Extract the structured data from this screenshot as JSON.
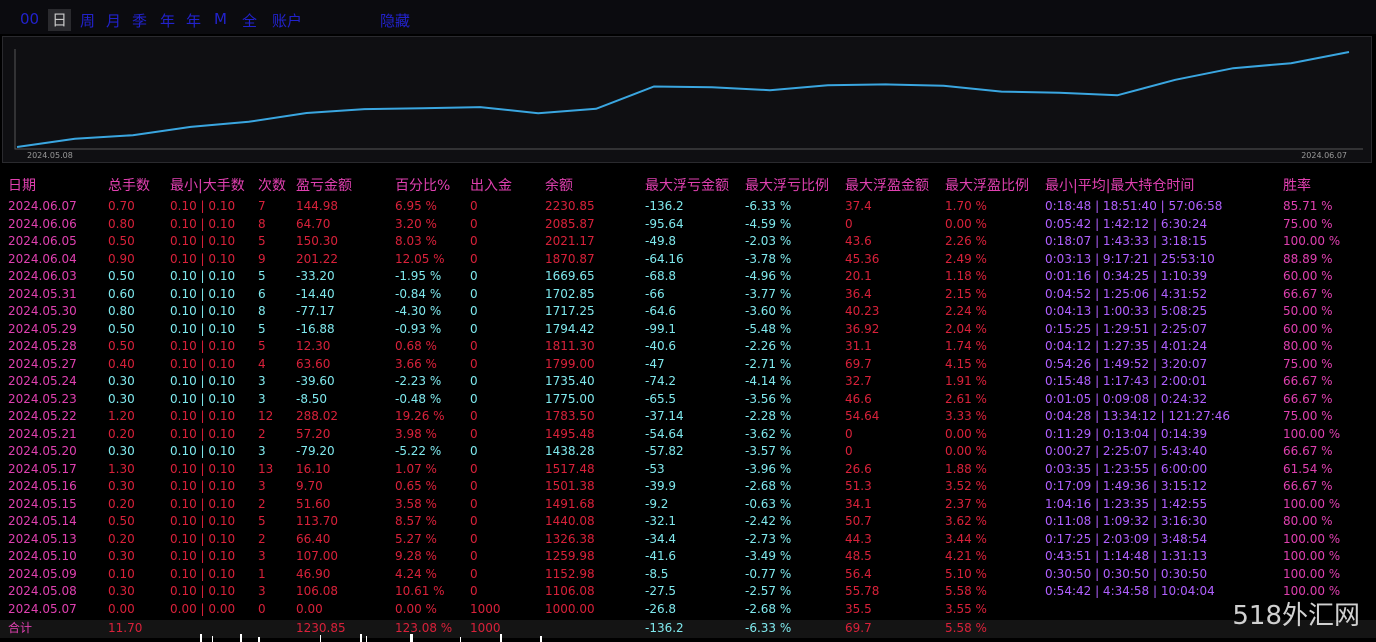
{
  "toolbar": {
    "tabs": [
      "00",
      "日",
      "周",
      "月",
      "季",
      "年",
      "年",
      "M",
      "全",
      "账户"
    ],
    "active_index": 1,
    "extra": "隐藏"
  },
  "chart_data": {
    "type": "line",
    "x_start_label": "2024.05.08",
    "x_end_label": "2024.06.07",
    "color": "#3aa6e0",
    "values": [
      1000.0,
      1106.08,
      1152.98,
      1259.98,
      1326.38,
      1440.08,
      1491.68,
      1501.38,
      1517.48,
      1438.28,
      1495.48,
      1783.5,
      1775.0,
      1735.4,
      1799.0,
      1811.3,
      1794.42,
      1717.25,
      1702.85,
      1669.65,
      1870.87,
      2021.17,
      2085.87,
      2230.85
    ]
  },
  "table": {
    "headers": [
      "日期",
      "总手数",
      "最小|大手数",
      "次数",
      "盈亏金额",
      "百分比%",
      "出入金",
      "余额",
      "最大浮亏金额",
      "最大浮亏比例",
      "最大浮盈金额",
      "最大浮盈比例",
      "最小|平均|最大持仓时间",
      "胜率"
    ],
    "rows": [
      {
        "c": "r",
        "v": [
          "2024.06.07",
          "0.70",
          "0.10 | 0.10",
          "7",
          "144.98",
          "6.95 %",
          "0",
          "2230.85",
          "-136.2",
          "-6.33 %",
          "37.4",
          "1.70 %",
          "0:18:48 | 18:51:40 | 57:06:58",
          "85.71 %"
        ]
      },
      {
        "c": "r",
        "v": [
          "2024.06.06",
          "0.80",
          "0.10 | 0.10",
          "8",
          "64.70",
          "3.20 %",
          "0",
          "2085.87",
          "-95.64",
          "-4.59 %",
          "0",
          "0.00 %",
          "0:05:42 | 1:42:12 | 6:30:24",
          "75.00 %"
        ]
      },
      {
        "c": "r",
        "v": [
          "2024.06.05",
          "0.50",
          "0.10 | 0.10",
          "5",
          "150.30",
          "8.03 %",
          "0",
          "2021.17",
          "-49.8",
          "-2.03 %",
          "43.6",
          "2.26 %",
          "0:18:07 | 1:43:33 | 3:18:15",
          "100.00 %"
        ]
      },
      {
        "c": "r",
        "v": [
          "2024.06.04",
          "0.90",
          "0.10 | 0.10",
          "9",
          "201.22",
          "12.05 %",
          "0",
          "1870.87",
          "-64.16",
          "-3.78 %",
          "45.36",
          "2.49 %",
          "0:03:13 | 9:17:21 | 25:53:10",
          "88.89 %"
        ]
      },
      {
        "c": "g",
        "v": [
          "2024.06.03",
          "0.50",
          "0.10 | 0.10",
          "5",
          "-33.20",
          "-1.95 %",
          "0",
          "1669.65",
          "-68.8",
          "-4.96 %",
          "20.1",
          "1.18 %",
          "0:01:16 | 0:34:25 | 1:10:39",
          "60.00 %"
        ]
      },
      {
        "c": "g",
        "v": [
          "2024.05.31",
          "0.60",
          "0.10 | 0.10",
          "6",
          "-14.40",
          "-0.84 %",
          "0",
          "1702.85",
          "-66",
          "-3.77 %",
          "36.4",
          "2.15 %",
          "0:04:52 | 1:25:06 | 4:31:52",
          "66.67 %"
        ]
      },
      {
        "c": "g",
        "v": [
          "2024.05.30",
          "0.80",
          "0.10 | 0.10",
          "8",
          "-77.17",
          "-4.30 %",
          "0",
          "1717.25",
          "-64.6",
          "-3.60 %",
          "40.23",
          "2.24 %",
          "0:04:13 | 1:00:33 | 5:08:25",
          "50.00 %"
        ]
      },
      {
        "c": "g",
        "v": [
          "2024.05.29",
          "0.50",
          "0.10 | 0.10",
          "5",
          "-16.88",
          "-0.93 %",
          "0",
          "1794.42",
          "-99.1",
          "-5.48 %",
          "36.92",
          "2.04 %",
          "0:15:25 | 1:29:51 | 2:25:07",
          "60.00 %"
        ]
      },
      {
        "c": "r",
        "v": [
          "2024.05.28",
          "0.50",
          "0.10 | 0.10",
          "5",
          "12.30",
          "0.68 %",
          "0",
          "1811.30",
          "-40.6",
          "-2.26 %",
          "31.1",
          "1.74 %",
          "0:04:12 | 1:27:35 | 4:01:24",
          "80.00 %"
        ]
      },
      {
        "c": "r",
        "v": [
          "2024.05.27",
          "0.40",
          "0.10 | 0.10",
          "4",
          "63.60",
          "3.66 %",
          "0",
          "1799.00",
          "-47",
          "-2.71 %",
          "69.7",
          "4.15 %",
          "0:54:26 | 1:49:52 | 3:20:07",
          "75.00 %"
        ]
      },
      {
        "c": "g",
        "v": [
          "2024.05.24",
          "0.30",
          "0.10 | 0.10",
          "3",
          "-39.60",
          "-2.23 %",
          "0",
          "1735.40",
          "-74.2",
          "-4.14 %",
          "32.7",
          "1.91 %",
          "0:15:48 | 1:17:43 | 2:00:01",
          "66.67 %"
        ]
      },
      {
        "c": "g",
        "v": [
          "2024.05.23",
          "0.30",
          "0.10 | 0.10",
          "3",
          "-8.50",
          "-0.48 %",
          "0",
          "1775.00",
          "-65.5",
          "-3.56 %",
          "46.6",
          "2.61 %",
          "0:01:05 | 0:09:08 | 0:24:32",
          "66.67 %"
        ]
      },
      {
        "c": "r",
        "v": [
          "2024.05.22",
          "1.20",
          "0.10 | 0.10",
          "12",
          "288.02",
          "19.26 %",
          "0",
          "1783.50",
          "-37.14",
          "-2.28 %",
          "54.64",
          "3.33 %",
          "0:04:28 | 13:34:12 | 121:27:46",
          "75.00 %"
        ]
      },
      {
        "c": "r",
        "v": [
          "2024.05.21",
          "0.20",
          "0.10 | 0.10",
          "2",
          "57.20",
          "3.98 %",
          "0",
          "1495.48",
          "-54.64",
          "-3.62 %",
          "0",
          "0.00 %",
          "0:11:29 | 0:13:04 | 0:14:39",
          "100.00 %"
        ]
      },
      {
        "c": "g",
        "v": [
          "2024.05.20",
          "0.30",
          "0.10 | 0.10",
          "3",
          "-79.20",
          "-5.22 %",
          "0",
          "1438.28",
          "-57.82",
          "-3.57 %",
          "0",
          "0.00 %",
          "0:00:27 | 2:25:07 | 5:43:40",
          "66.67 %"
        ]
      },
      {
        "c": "r",
        "v": [
          "2024.05.17",
          "1.30",
          "0.10 | 0.10",
          "13",
          "16.10",
          "1.07 %",
          "0",
          "1517.48",
          "-53",
          "-3.96 %",
          "26.6",
          "1.88 %",
          "0:03:35 | 1:23:55 | 6:00:00",
          "61.54 %"
        ]
      },
      {
        "c": "r",
        "v": [
          "2024.05.16",
          "0.30",
          "0.10 | 0.10",
          "3",
          "9.70",
          "0.65 %",
          "0",
          "1501.38",
          "-39.9",
          "-2.68 %",
          "51.3",
          "3.52 %",
          "0:17:09 | 1:49:36 | 3:15:12",
          "66.67 %"
        ]
      },
      {
        "c": "r",
        "v": [
          "2024.05.15",
          "0.20",
          "0.10 | 0.10",
          "2",
          "51.60",
          "3.58 %",
          "0",
          "1491.68",
          "-9.2",
          "-0.63 %",
          "34.1",
          "2.37 %",
          "1:04:16 | 1:23:35 | 1:42:55",
          "100.00 %"
        ]
      },
      {
        "c": "r",
        "v": [
          "2024.05.14",
          "0.50",
          "0.10 | 0.10",
          "5",
          "113.70",
          "8.57 %",
          "0",
          "1440.08",
          "-32.1",
          "-2.42 %",
          "50.7",
          "3.62 %",
          "0:11:08 | 1:09:32 | 3:16:30",
          "80.00 %"
        ]
      },
      {
        "c": "r",
        "v": [
          "2024.05.13",
          "0.20",
          "0.10 | 0.10",
          "2",
          "66.40",
          "5.27 %",
          "0",
          "1326.38",
          "-34.4",
          "-2.73 %",
          "44.3",
          "3.44 %",
          "0:17:25 | 2:03:09 | 3:48:54",
          "100.00 %"
        ]
      },
      {
        "c": "r",
        "v": [
          "2024.05.10",
          "0.30",
          "0.10 | 0.10",
          "3",
          "107.00",
          "9.28 %",
          "0",
          "1259.98",
          "-41.6",
          "-3.49 %",
          "48.5",
          "4.21 %",
          "0:43:51 | 1:14:48 | 1:31:13",
          "100.00 %"
        ]
      },
      {
        "c": "r",
        "v": [
          "2024.05.09",
          "0.10",
          "0.10 | 0.10",
          "1",
          "46.90",
          "4.24 %",
          "0",
          "1152.98",
          "-8.5",
          "-0.77 %",
          "56.4",
          "5.10 %",
          "0:30:50 | 0:30:50 | 0:30:50",
          "100.00 %"
        ]
      },
      {
        "c": "r",
        "v": [
          "2024.05.08",
          "0.30",
          "0.10 | 0.10",
          "3",
          "106.08",
          "10.61 %",
          "0",
          "1106.08",
          "-27.5",
          "-2.57 %",
          "55.78",
          "5.58 %",
          "0:54:42 | 4:34:58 | 10:04:04",
          "100.00 %"
        ]
      },
      {
        "c": "r",
        "v": [
          "2024.05.07",
          "0.00",
          "0.00 | 0.00",
          "0",
          "0.00",
          "0.00 %",
          "1000",
          "1000.00",
          "-26.8",
          "-2.68 %",
          "35.5",
          "3.55 %",
          "",
          ""
        ]
      }
    ],
    "total": [
      "合计",
      "11.70",
      "",
      "",
      "1230.85",
      "123.08 %",
      "1000",
      "",
      "-136.2",
      "-6.33 %",
      "69.7",
      "5.58 %",
      "",
      ""
    ]
  },
  "watermark": "518外汇网",
  "colors": {
    "pink": "#e040b0",
    "red": "#d9213a",
    "cyan": "#7fe9ee",
    "purple": "#b060ff",
    "line": "#3aa6e0"
  }
}
